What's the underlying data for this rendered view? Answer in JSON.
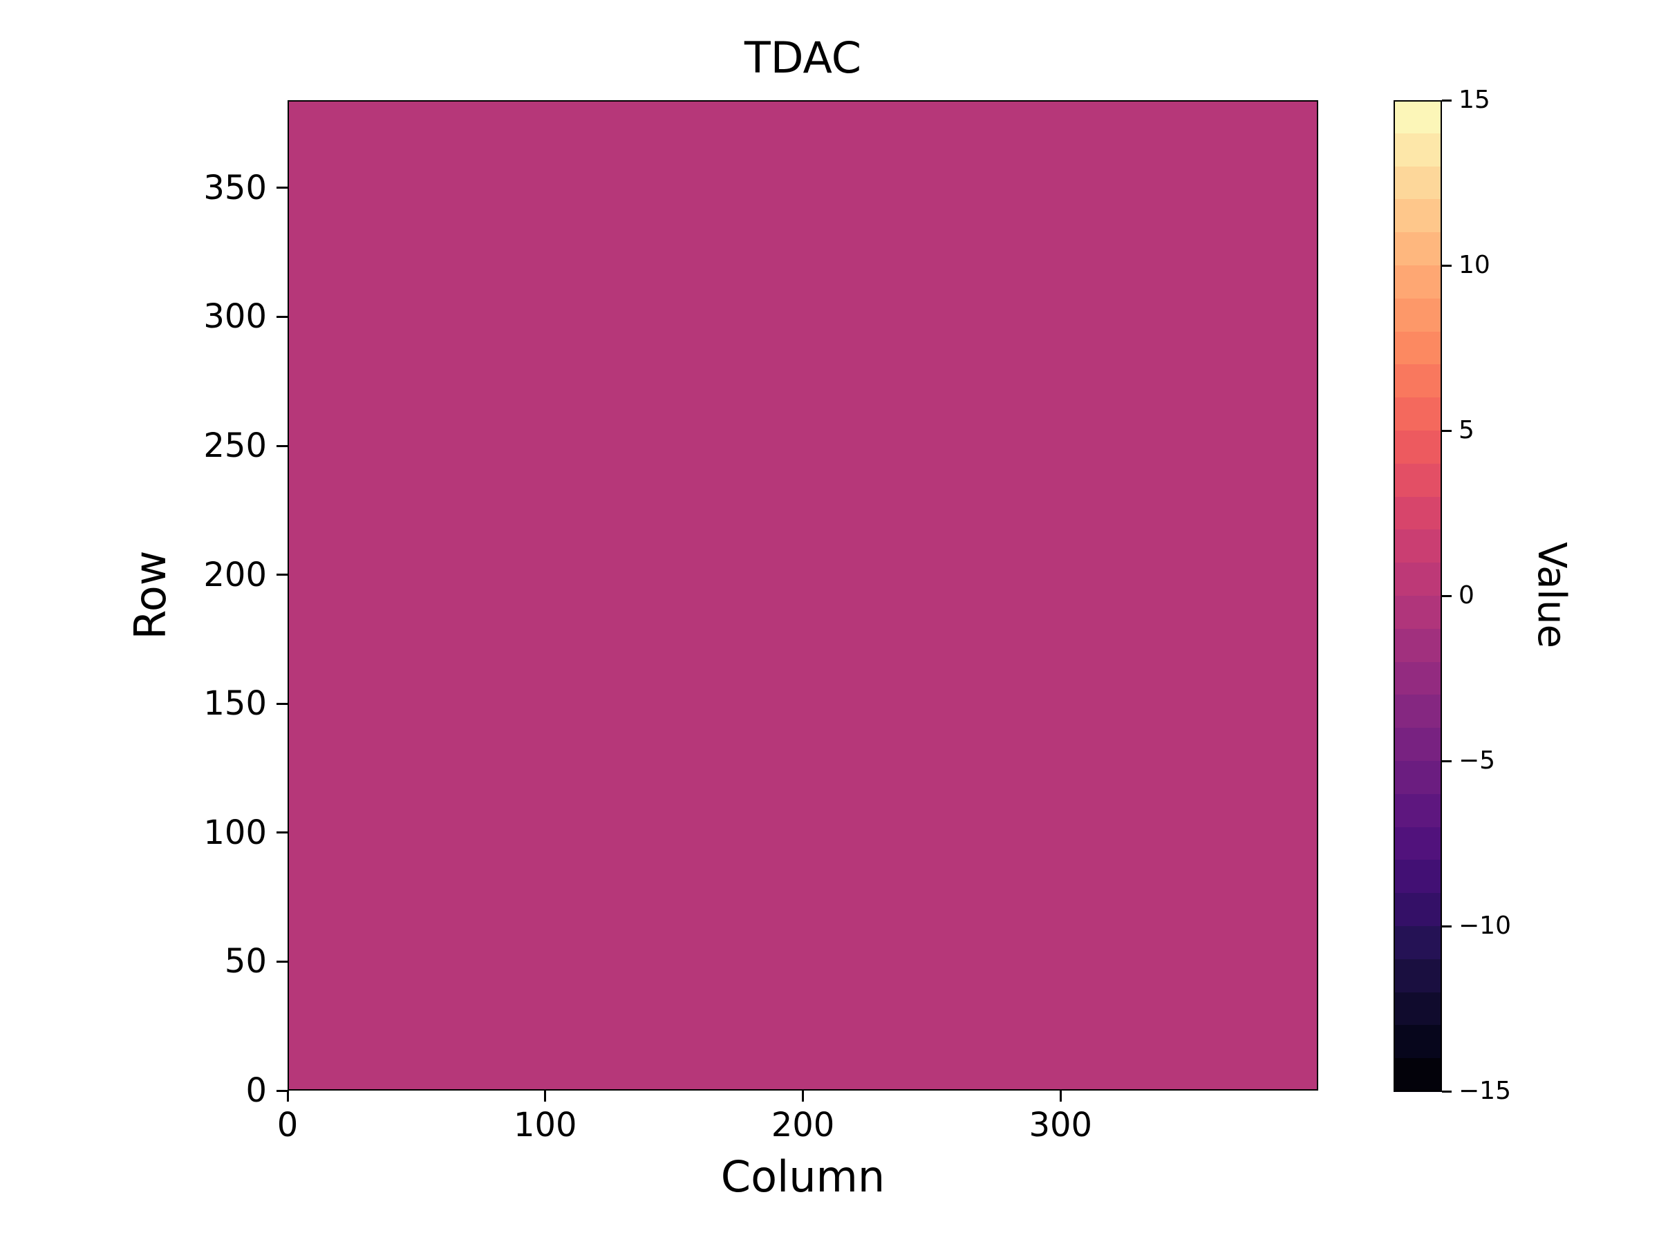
{
  "title": "TDAC",
  "xlabel": "Column",
  "ylabel": "Row",
  "heatmap_fill": "#b63779",
  "axes": {
    "x_ticks": [
      0,
      100,
      200,
      300
    ],
    "x_tick_labels": [
      "0",
      "100",
      "200",
      "300"
    ],
    "x_max": 400,
    "y_ticks": [
      0,
      50,
      100,
      150,
      200,
      250,
      300,
      350
    ],
    "y_tick_labels": [
      "0",
      "50",
      "100",
      "150",
      "200",
      "250",
      "300",
      "350"
    ],
    "y_max": 384
  },
  "colorbar": {
    "label": "Value",
    "vmin": -15,
    "vmax": 15,
    "tick_values": [
      15,
      10,
      5,
      0,
      -5,
      -10,
      -15
    ],
    "tick_labels": [
      "15",
      "10",
      "5",
      "0",
      "−5",
      "−10",
      "−15"
    ],
    "band_colors": [
      "#03020a",
      "#07061c",
      "#100b2d",
      "#1a0f40",
      "#251255",
      "#341067",
      "#421074",
      "#51127c",
      "#5e177f",
      "#6b1d80",
      "#782281",
      "#852781",
      "#932b80",
      "#a1307e",
      "#b0357b",
      "#bd3977",
      "#ca3e72",
      "#d7456b",
      "#e34f65",
      "#ed5a5f",
      "#f4695d",
      "#f9785e",
      "#fc8961",
      "#fd9869",
      "#fea773",
      "#feb77e",
      "#fec78b",
      "#fdd79a",
      "#fde7a9",
      "#fcf6b8"
    ]
  },
  "chart_data": {
    "type": "heatmap",
    "title": "TDAC",
    "xlabel": "Column",
    "ylabel": "Row",
    "colorbar_label": "Value",
    "x_range": [
      0,
      400
    ],
    "y_range": [
      0,
      384
    ],
    "value_range": [
      -15,
      15
    ],
    "colorbar_ticks": [
      15,
      10,
      5,
      0,
      -5,
      -10,
      -15
    ],
    "colormap": "magma (discrete, 30 levels)",
    "grid": false,
    "legend": "colorbar on right",
    "data_summary": "uniform heatmap: every cell of the 400x384 map has the same value",
    "uniform_value": 0
  }
}
